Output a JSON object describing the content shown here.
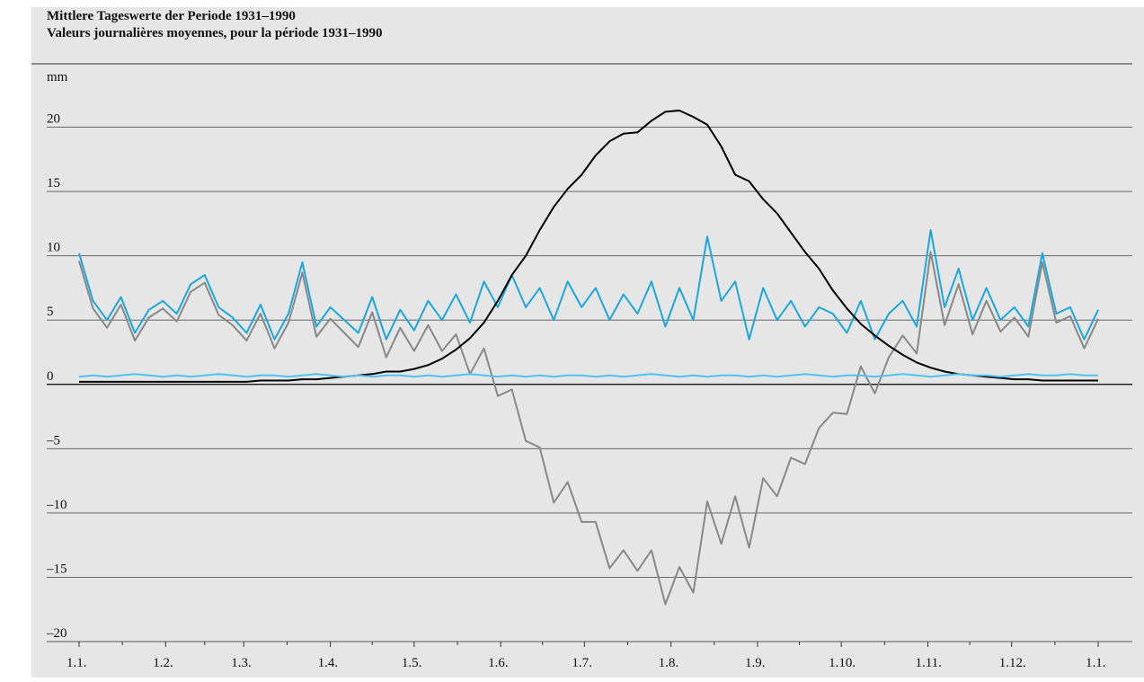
{
  "chart_data": {
    "type": "line",
    "title": "Mittlere Tageswerte der Periode 1931–1990",
    "subtitle": "Valeurs journalières moyennes, pour la période 1931–1990",
    "ylabel": "mm",
    "x": [
      0,
      5,
      10,
      15,
      20,
      25,
      30,
      35,
      40,
      45,
      50,
      55,
      60,
      65,
      70,
      75,
      80,
      85,
      90,
      95,
      100,
      105,
      110,
      115,
      120,
      125,
      130,
      135,
      140,
      145,
      150,
      155,
      160,
      165,
      170,
      175,
      180,
      185,
      190,
      195,
      200,
      205,
      210,
      215,
      220,
      225,
      230,
      235,
      240,
      245,
      250,
      255,
      260,
      265,
      270,
      275,
      280,
      285,
      290,
      295,
      300,
      305,
      310,
      315,
      320,
      325,
      330,
      335,
      340,
      345,
      350,
      355,
      360,
      365
    ],
    "xlim": [
      0,
      365
    ],
    "xticks": [
      {
        "value": 0,
        "label": "1.1."
      },
      {
        "value": 31,
        "label": "1.2."
      },
      {
        "value": 59,
        "label": "1.3."
      },
      {
        "value": 90,
        "label": "1.4."
      },
      {
        "value": 120,
        "label": "1.5."
      },
      {
        "value": 151,
        "label": "1.6."
      },
      {
        "value": 181,
        "label": "1.7."
      },
      {
        "value": 212,
        "label": "1.8."
      },
      {
        "value": 243,
        "label": "1.9."
      },
      {
        "value": 273,
        "label": "1.10."
      },
      {
        "value": 304,
        "label": "1.11."
      },
      {
        "value": 334,
        "label": "1.12."
      },
      {
        "value": 365,
        "label": "1.1."
      }
    ],
    "ylim": [
      -20,
      25
    ],
    "yticks": [
      {
        "value": -20,
        "label": "–20"
      },
      {
        "value": -15,
        "label": "–15"
      },
      {
        "value": -10,
        "label": "–10"
      },
      {
        "value": -5,
        "label": "–5"
      },
      0,
      5,
      10,
      15,
      20
    ],
    "grid": true,
    "series": [
      {
        "color": "#1aa7e0",
        "values": [
          10.2,
          6.5,
          5.0,
          6.8,
          4.0,
          5.8,
          6.5,
          5.5,
          7.8,
          8.5,
          6.0,
          5.2,
          4.0,
          6.2,
          3.5,
          5.5,
          9.5,
          4.5,
          6.0,
          5.0,
          4.0,
          6.8,
          3.5,
          5.8,
          4.2,
          6.5,
          5.0,
          7.0,
          4.8,
          8.0,
          6.0,
          8.5,
          6.0,
          7.5,
          5.0,
          8.0,
          6.0,
          7.5,
          5.0,
          7.0,
          5.5,
          8.0,
          4.5,
          7.5,
          5.0,
          11.5,
          6.5,
          8.0,
          3.5,
          7.5,
          5.0,
          6.5,
          4.5,
          6.0,
          5.5,
          4.0,
          6.5,
          3.5,
          5.5,
          6.5,
          4.5,
          12.0,
          6.0,
          9.0,
          5.0,
          7.5,
          5.0,
          6.0,
          4.5,
          10.2,
          5.5,
          6.0,
          3.5,
          5.8
        ]
      },
      {
        "color": "#888888",
        "values": [
          9.6,
          5.9,
          4.4,
          6.2,
          3.4,
          5.2,
          5.9,
          4.9,
          7.2,
          7.9,
          5.4,
          4.6,
          3.4,
          5.5,
          2.8,
          4.8,
          8.7,
          3.7,
          5.1,
          4.0,
          2.9,
          5.6,
          2.1,
          4.4,
          2.6,
          4.6,
          2.6,
          3.9,
          0.8,
          2.8,
          -0.9,
          -0.4,
          -4.4,
          -4.9,
          -9.2,
          -7.6,
          -10.7,
          -10.7,
          -14.3,
          -12.9,
          -14.5,
          -12.9,
          -17.1,
          -14.2,
          -16.2,
          -9.1,
          -12.4,
          -8.7,
          -12.7,
          -7.3,
          -8.7,
          -5.7,
          -6.2,
          -3.4,
          -2.2,
          -2.3,
          1.4,
          -0.7,
          2.1,
          3.8,
          2.4,
          10.3,
          4.6,
          7.8,
          3.9,
          6.5,
          4.1,
          5.2,
          3.7,
          9.5,
          4.8,
          5.3,
          2.8,
          5.1
        ]
      },
      {
        "color": "#000000",
        "values": [
          0.2,
          0.2,
          0.2,
          0.2,
          0.2,
          0.2,
          0.2,
          0.2,
          0.2,
          0.2,
          0.2,
          0.2,
          0.2,
          0.3,
          0.3,
          0.3,
          0.4,
          0.4,
          0.5,
          0.6,
          0.7,
          0.8,
          1.0,
          1.0,
          1.2,
          1.5,
          2.0,
          2.7,
          3.6,
          4.8,
          6.5,
          8.5,
          10.0,
          12.0,
          13.8,
          15.2,
          16.3,
          17.8,
          18.9,
          19.5,
          19.6,
          20.5,
          21.2,
          21.3,
          20.8,
          20.2,
          18.5,
          16.3,
          15.8,
          14.4,
          13.3,
          11.8,
          10.3,
          9.0,
          7.3,
          5.9,
          4.7,
          3.8,
          3.0,
          2.3,
          1.7,
          1.3,
          1.0,
          0.8,
          0.7,
          0.6,
          0.5,
          0.4,
          0.4,
          0.3,
          0.3,
          0.3,
          0.3,
          0.3
        ]
      },
      {
        "color": "#4ec3ee",
        "values": [
          0.6,
          0.7,
          0.6,
          0.7,
          0.8,
          0.7,
          0.6,
          0.7,
          0.6,
          0.7,
          0.8,
          0.7,
          0.6,
          0.7,
          0.7,
          0.6,
          0.7,
          0.8,
          0.7,
          0.6,
          0.7,
          0.6,
          0.7,
          0.7,
          0.6,
          0.7,
          0.6,
          0.7,
          0.8,
          0.7,
          0.6,
          0.7,
          0.6,
          0.7,
          0.6,
          0.7,
          0.7,
          0.6,
          0.7,
          0.6,
          0.7,
          0.8,
          0.7,
          0.6,
          0.7,
          0.6,
          0.7,
          0.7,
          0.6,
          0.7,
          0.6,
          0.7,
          0.8,
          0.7,
          0.6,
          0.7,
          0.7,
          0.6,
          0.7,
          0.8,
          0.7,
          0.6,
          0.7,
          0.8,
          0.7,
          0.7,
          0.6,
          0.7,
          0.8,
          0.7,
          0.7,
          0.8,
          0.7,
          0.7
        ]
      }
    ]
  }
}
